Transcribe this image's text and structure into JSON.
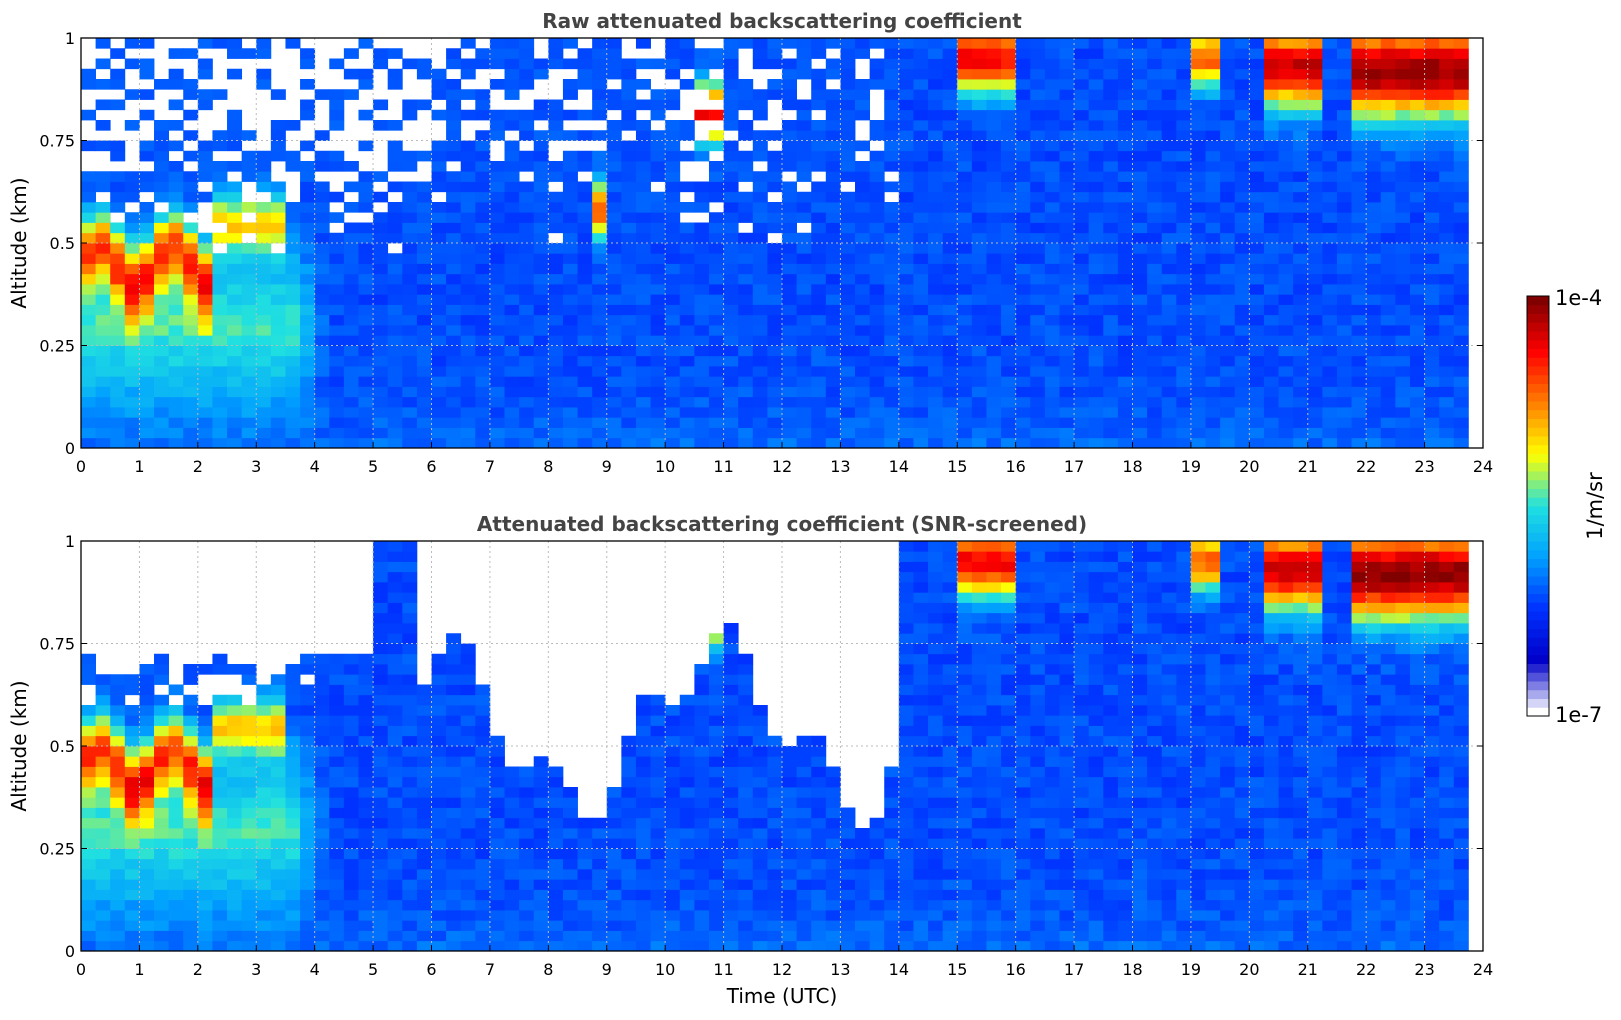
{
  "chart_data": [
    {
      "type": "heatmap",
      "title": "Raw attenuated backscattering coefficient",
      "xlabel": "",
      "ylabel": "Altitude (km)",
      "xlim": [
        0,
        24
      ],
      "ylim": [
        0,
        1
      ],
      "xticks": [
        "0",
        "1",
        "2",
        "3",
        "4",
        "5",
        "6",
        "7",
        "8",
        "9",
        "10",
        "11",
        "12",
        "13",
        "14",
        "15",
        "16",
        "17",
        "18",
        "19",
        "20",
        "21",
        "22",
        "23",
        "24"
      ],
      "yticks": [
        "0",
        "0.25",
        "0.5",
        "0.75",
        "1"
      ],
      "grid": true,
      "screened": false
    },
    {
      "type": "heatmap",
      "title": "Attenuated backscattering coefficient (SNR-screened)",
      "xlabel": "Time (UTC)",
      "ylabel": "Altitude (km)",
      "xlim": [
        0,
        24
      ],
      "ylim": [
        0,
        1
      ],
      "xticks": [
        "0",
        "1",
        "2",
        "3",
        "4",
        "5",
        "6",
        "7",
        "8",
        "9",
        "10",
        "11",
        "12",
        "13",
        "14",
        "15",
        "16",
        "17",
        "18",
        "19",
        "20",
        "21",
        "22",
        "23",
        "24"
      ],
      "yticks": [
        "0",
        "0.25",
        "0.5",
        "0.75",
        "1"
      ],
      "grid": true,
      "screened": true
    }
  ],
  "colorbar": {
    "label": "1/m/sr",
    "max_label": "1e-4",
    "min_label": "1e-7",
    "scale": "log",
    "range": [
      1e-07,
      0.0001
    ],
    "colormap": "jet",
    "colors": [
      "#ffffff",
      "#0000c8",
      "#0030ff",
      "#00a0ff",
      "#20e0e0",
      "#ffff00",
      "#ff8000",
      "#ff0000",
      "#800000"
    ]
  }
}
